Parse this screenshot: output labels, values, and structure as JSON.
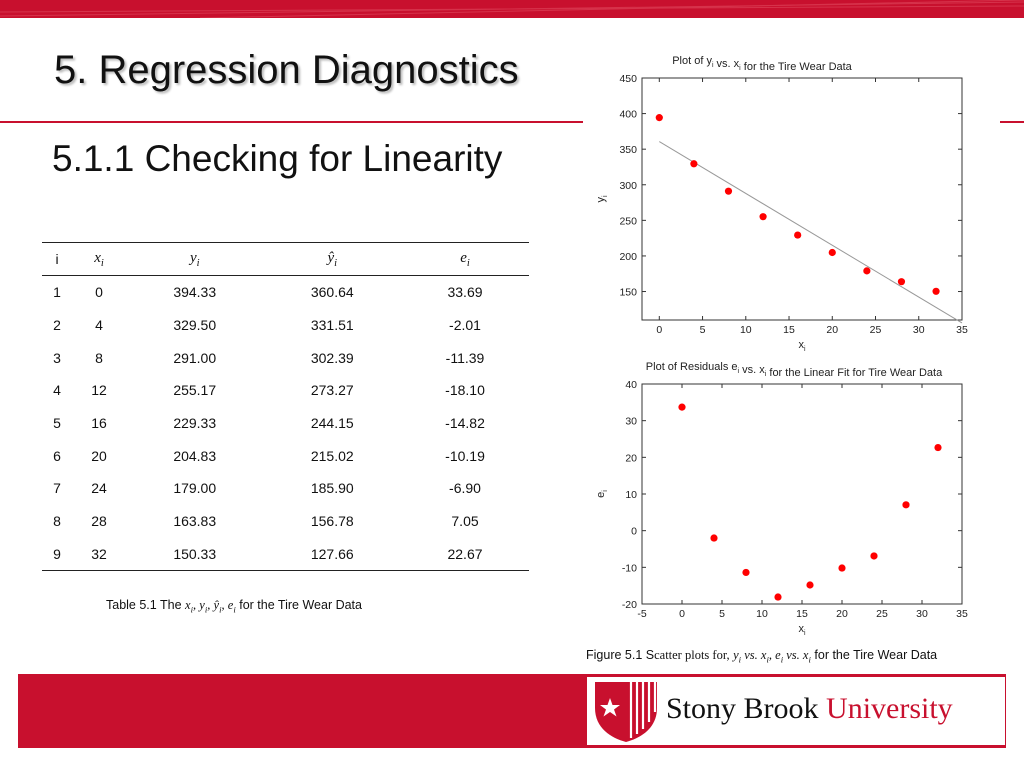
{
  "slide": {
    "title": "5. Regression Diagnostics",
    "subtitle": "5.1.1 Checking for Linearity"
  },
  "table": {
    "headers": [
      "i",
      "x_i",
      "y_i",
      "ŷ_i",
      "e_i"
    ],
    "rows": [
      [
        "1",
        "0",
        "394.33",
        "360.64",
        "33.69"
      ],
      [
        "2",
        "4",
        "329.50",
        "331.51",
        "-2.01"
      ],
      [
        "3",
        "8",
        "291.00",
        "302.39",
        "-11.39"
      ],
      [
        "4",
        "12",
        "255.17",
        "273.27",
        "-18.10"
      ],
      [
        "5",
        "16",
        "229.33",
        "244.15",
        "-14.82"
      ],
      [
        "6",
        "20",
        "204.83",
        "215.02",
        "-10.19"
      ],
      [
        "7",
        "24",
        "179.00",
        "185.90",
        "-6.90"
      ],
      [
        "8",
        "28",
        "163.83",
        "156.78",
        "7.05"
      ],
      [
        "9",
        "32",
        "150.33",
        "127.66",
        "22.67"
      ]
    ],
    "caption_prefix": "Table 5.1 The",
    "caption_math": "x_i, y_i, ŷ_i, e_i",
    "caption_suffix": "for the Tire Wear Data"
  },
  "figure_caption": {
    "prefix": "Figure 5.1 S",
    "serif_part": "catter plots for,",
    "math": "y_i vs. x_i, e_i vs. x_i",
    "suffix": "for the Tire Wear Data"
  },
  "logo": {
    "part1": "Stony Brook",
    "part2": "University",
    "brand_color": "#c8102e"
  },
  "chart_data": [
    {
      "type": "scatter",
      "title": "Plot of y_i vs. x_i for the Tire Wear Data",
      "xlabel": "x_i",
      "ylabel": "y_i",
      "x": [
        0,
        4,
        8,
        12,
        16,
        20,
        24,
        28,
        32
      ],
      "y": [
        394.33,
        329.5,
        291.0,
        255.17,
        229.33,
        204.83,
        179.0,
        163.83,
        150.33
      ],
      "fit_line": {
        "x": [
          0,
          35
        ],
        "y": [
          360.64,
          105.82
        ]
      },
      "xlim": [
        -2,
        35
      ],
      "ylim": [
        110,
        450
      ],
      "xticks": [
        0,
        5,
        10,
        15,
        20,
        25,
        30,
        35
      ],
      "yticks": [
        150,
        200,
        250,
        300,
        350,
        400,
        450
      ],
      "marker_color": "#ff0000",
      "grid": false
    },
    {
      "type": "scatter",
      "title": "Plot of Residuals e_i vs. x_i for the Linear Fit for Tire Wear Data",
      "xlabel": "x_i",
      "ylabel": "e_i",
      "x": [
        0,
        4,
        8,
        12,
        16,
        20,
        24,
        28,
        32
      ],
      "y": [
        33.69,
        -2.01,
        -11.39,
        -18.1,
        -14.82,
        -10.19,
        -6.9,
        7.05,
        22.67
      ],
      "xlim": [
        -5,
        35
      ],
      "ylim": [
        -20,
        40
      ],
      "xticks": [
        -5,
        0,
        5,
        10,
        15,
        20,
        25,
        30,
        35
      ],
      "yticks": [
        -20,
        -10,
        0,
        10,
        20,
        30,
        40
      ],
      "marker_color": "#ff0000",
      "grid": false
    }
  ]
}
